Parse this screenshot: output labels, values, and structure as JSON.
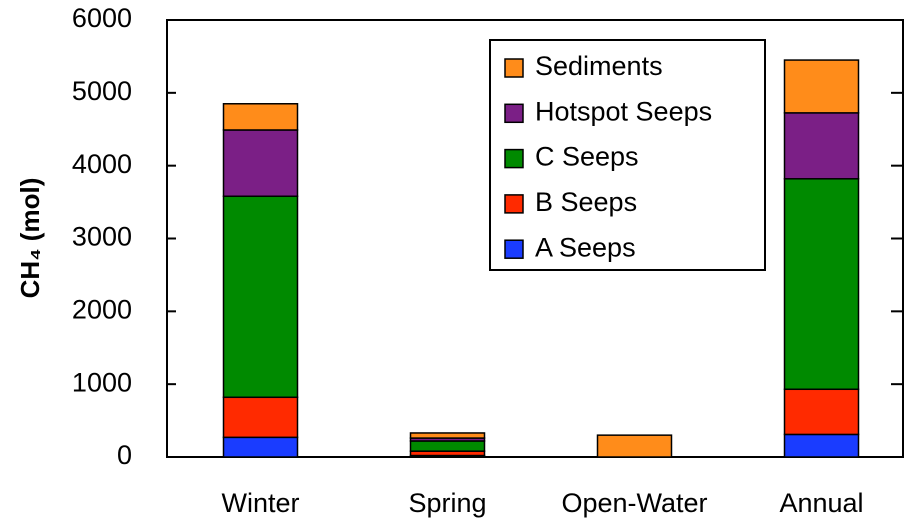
{
  "chart_data": {
    "type": "stacked_bar",
    "y_label": "CH₄ (mol)",
    "categories": [
      "Winter",
      "Spring",
      "Open-Water",
      "Annual"
    ],
    "series": [
      {
        "name": "A Seeps",
        "color": "#1a3cff",
        "values": [
          270,
          20,
          0,
          310
        ]
      },
      {
        "name": "B Seeps",
        "color": "#ff2a00",
        "values": [
          550,
          60,
          0,
          620
        ]
      },
      {
        "name": "C Seeps",
        "color": "#008a00",
        "values": [
          2760,
          140,
          0,
          2890
        ]
      },
      {
        "name": "Hotspot Seeps",
        "color": "#7b1f86",
        "values": [
          910,
          40,
          0,
          905
        ]
      },
      {
        "name": "Sediments",
        "color": "#ff8c1a",
        "values": [
          360,
          70,
          300,
          725
        ]
      }
    ],
    "ylim": [
      0,
      6000
    ],
    "yticks": [
      0,
      1000,
      2000,
      3000,
      4000,
      5000,
      6000
    ],
    "legend": "top-right"
  }
}
